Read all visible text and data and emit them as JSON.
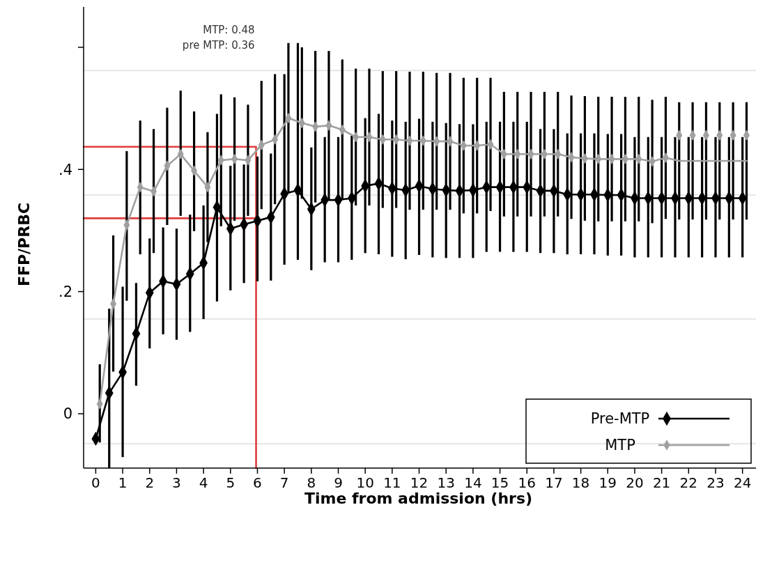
{
  "chart_data": {
    "type": "line",
    "xlabel": "Time from admission (hrs)",
    "ylabel": "FFP/PRBC",
    "annotations": [
      "MTP: 0.48",
      "pre MTP: 0.36"
    ],
    "xlim": [
      -0.45,
      24.5
    ],
    "xticks": [
      0,
      1,
      2,
      3,
      4,
      5,
      6,
      7,
      8,
      9,
      10,
      11,
      12,
      13,
      14,
      15,
      16,
      17,
      18,
      19,
      20,
      21,
      22,
      23,
      24
    ],
    "ylim": [
      -0.089,
      0.666
    ],
    "yticks": [
      {
        "value": 0,
        "label": "0"
      },
      {
        "value": 0.2,
        "label": ".2"
      },
      {
        "value": 0.4,
        "label": ".4"
      },
      {
        "value": 0.6,
        "label": null
      }
    ],
    "grid": false,
    "legend": "bottom right",
    "marker": "diamond",
    "line_style": "solid",
    "ref_lines": [
      {
        "axis": "y",
        "value": -0.049,
        "color": "#e6e6e6"
      },
      {
        "axis": "y",
        "value": 0.155,
        "color": "#e6e6e6"
      },
      {
        "axis": "y",
        "value": 0.358,
        "color": "#e6e6e6"
      },
      {
        "axis": "y",
        "value": 0.562,
        "color": "#e6e6e6"
      }
    ],
    "series": [
      {
        "type": "line",
        "color": "#e03c3c",
        "marker": "none",
        "x": [
          -0.45,
          5.95,
          5.95
        ],
        "values": [
          0.437,
          0.437,
          -0.089
        ]
      },
      {
        "type": "line",
        "color": "#e03c3c",
        "marker": "none",
        "x": [
          -0.45,
          5.95
        ],
        "values": [
          0.32,
          0.32
        ]
      },
      {
        "name": "Pre-MTP",
        "color": "#000000",
        "x": [
          0,
          0.5,
          1,
          1.5,
          2,
          2.5,
          3,
          3.5,
          4,
          4.5,
          5,
          5.5,
          6,
          6.5,
          7,
          7.5,
          8,
          8.5,
          9,
          9.5,
          10,
          10.5,
          11,
          11.5,
          12,
          12.5,
          13,
          13.5,
          14,
          14.5,
          15,
          15.5,
          16,
          16.5,
          17,
          17.5,
          18,
          18.5,
          19,
          19.5,
          20,
          20.5,
          21,
          21.5,
          22,
          22.5,
          23,
          23.5,
          24
        ],
        "values": [
          -0.041,
          0.034,
          0.068,
          0.131,
          0.198,
          0.217,
          0.212,
          0.229,
          0.247,
          0.338,
          0.303,
          0.31,
          0.316,
          0.322,
          0.36,
          0.366,
          0.335,
          0.35,
          0.35,
          0.353,
          0.373,
          0.377,
          0.369,
          0.366,
          0.373,
          0.368,
          0.366,
          0.365,
          0.366,
          0.371,
          0.371,
          0.371,
          0.371,
          0.365,
          0.365,
          0.359,
          0.359,
          0.359,
          0.358,
          0.358,
          0.353,
          0.353,
          0.353,
          0.353,
          0.353,
          0.353,
          0.353,
          0.353,
          0.353
        ],
        "errors": [
          null,
          [
            -0.089,
            0.172
          ],
          [
            -0.071,
            0.208
          ],
          [
            0.046,
            0.214
          ],
          [
            0.107,
            0.287
          ],
          [
            0.13,
            0.305
          ],
          [
            0.121,
            0.303
          ],
          [
            0.134,
            0.326
          ],
          [
            0.155,
            0.341
          ],
          [
            0.184,
            0.491
          ],
          [
            0.202,
            0.406
          ],
          [
            0.214,
            0.408
          ],
          [
            0.217,
            0.421
          ],
          [
            0.218,
            0.426
          ],
          [
            0.244,
            0.556
          ],
          [
            0.252,
            0.607
          ],
          [
            0.235,
            0.436
          ],
          [
            0.248,
            0.453
          ],
          [
            0.248,
            0.453
          ],
          [
            0.252,
            0.455
          ],
          [
            0.263,
            0.484
          ],
          [
            0.261,
            0.491
          ],
          [
            0.257,
            0.48
          ],
          [
            0.253,
            0.478
          ],
          [
            0.26,
            0.483
          ],
          [
            0.256,
            0.478
          ],
          [
            0.255,
            0.476
          ],
          [
            0.255,
            0.474
          ],
          [
            0.255,
            0.474
          ],
          [
            0.265,
            0.478
          ],
          [
            0.265,
            0.478
          ],
          [
            0.265,
            0.478
          ],
          [
            0.265,
            0.478
          ],
          [
            0.263,
            0.466
          ],
          [
            0.263,
            0.466
          ],
          [
            0.261,
            0.459
          ],
          [
            0.261,
            0.459
          ],
          [
            0.261,
            0.459
          ],
          [
            0.259,
            0.458
          ],
          [
            0.259,
            0.458
          ],
          [
            0.256,
            0.453
          ],
          [
            0.256,
            0.453
          ],
          [
            0.256,
            0.453
          ],
          [
            0.256,
            0.453
          ],
          [
            0.256,
            0.453
          ],
          [
            0.256,
            0.453
          ],
          [
            0.256,
            0.453
          ],
          [
            0.256,
            0.453
          ],
          [
            0.256,
            0.453
          ]
        ]
      },
      {
        "name": "MTP",
        "color": "#a0a0a0",
        "x": [
          0.15,
          0.65,
          1.15,
          1.65,
          2.15,
          2.65,
          3.15,
          3.65,
          4.15,
          4.65,
          5.15,
          5.65,
          6.15,
          6.65,
          7.15,
          7.65,
          8.15,
          8.65,
          9.15,
          9.65,
          10.15,
          10.65,
          11.15,
          11.65,
          12.15,
          12.65,
          13.15,
          13.65,
          14.15,
          14.65,
          15.15,
          15.65,
          16.15,
          16.65,
          17.15,
          17.65,
          18.15,
          18.65,
          19.15,
          19.65,
          20.15,
          20.65,
          21.15
        ],
        "values": [
          0.016,
          0.18,
          0.309,
          0.371,
          0.364,
          0.406,
          0.425,
          0.398,
          0.371,
          0.415,
          0.417,
          0.415,
          0.44,
          0.449,
          0.484,
          0.476,
          0.47,
          0.472,
          0.465,
          0.453,
          0.453,
          0.449,
          0.449,
          0.447,
          0.447,
          0.446,
          0.446,
          0.439,
          0.439,
          0.441,
          0.425,
          0.425,
          0.425,
          0.425,
          0.425,
          0.42,
          0.418,
          0.417,
          0.417,
          0.417,
          0.417,
          0.413,
          0.419
        ],
        "errors": [
          [
            -0.047,
            0.081
          ],
          [
            0.069,
            0.292
          ],
          [
            0.185,
            0.43
          ],
          [
            0.261,
            0.48
          ],
          [
            0.263,
            0.466
          ],
          [
            0.309,
            0.501
          ],
          [
            0.324,
            0.529
          ],
          [
            0.299,
            0.495
          ],
          [
            0.281,
            0.461
          ],
          [
            0.307,
            0.523
          ],
          [
            0.316,
            0.518
          ],
          [
            0.324,
            0.506
          ],
          [
            0.335,
            0.545
          ],
          [
            0.343,
            0.556
          ],
          [
            0.361,
            0.607
          ],
          [
            0.352,
            0.6
          ],
          [
            0.346,
            0.594
          ],
          [
            0.35,
            0.594
          ],
          [
            0.35,
            0.58
          ],
          [
            0.341,
            0.565
          ],
          [
            0.341,
            0.565
          ],
          [
            0.337,
            0.561
          ],
          [
            0.337,
            0.561
          ],
          [
            0.334,
            0.56
          ],
          [
            0.334,
            0.56
          ],
          [
            0.334,
            0.558
          ],
          [
            0.334,
            0.558
          ],
          [
            0.328,
            0.55
          ],
          [
            0.328,
            0.55
          ],
          [
            0.332,
            0.55
          ],
          [
            0.323,
            0.527
          ],
          [
            0.323,
            0.527
          ],
          [
            0.323,
            0.527
          ],
          [
            0.323,
            0.527
          ],
          [
            0.323,
            0.527
          ],
          [
            0.319,
            0.521
          ],
          [
            0.316,
            0.52
          ],
          [
            0.315,
            0.519
          ],
          [
            0.315,
            0.519
          ],
          [
            0.315,
            0.519
          ],
          [
            0.315,
            0.519
          ],
          [
            0.312,
            0.514
          ],
          [
            0.319,
            0.519
          ]
        ]
      },
      {
        "type": "line",
        "color": "#a0a0a0",
        "marker": "none",
        "x": [
          21.15,
          21.65,
          22.15,
          22.65,
          23.15,
          23.65,
          24.15
        ],
        "values": [
          0.419,
          0.414,
          0.414,
          0.414,
          0.414,
          0.414,
          0.414
        ],
        "errors": [
          null,
          [
            0.318,
            0.51
          ],
          [
            0.318,
            0.51
          ],
          [
            0.318,
            0.51
          ],
          [
            0.318,
            0.51
          ],
          [
            0.318,
            0.51
          ],
          [
            0.318,
            0.51
          ]
        ]
      },
      {
        "type": "scatter",
        "color": "#a0a0a0",
        "x": [
          21.65,
          22.15,
          22.65,
          23.15,
          23.65,
          24.15
        ],
        "values": [
          0.456,
          0.456,
          0.456,
          0.456,
          0.456,
          0.456
        ]
      }
    ]
  }
}
